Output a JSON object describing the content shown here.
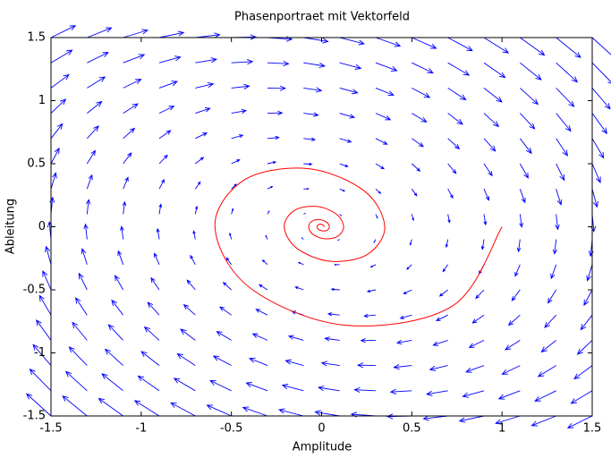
{
  "chart_data": {
    "type": "quiver",
    "title": "Phasenportraet mit Vektorfeld",
    "xlabel": "Amplitude",
    "ylabel": "Ableitung",
    "xlim": [
      -1.5,
      1.5
    ],
    "ylim": [
      -1.5,
      1.5
    ],
    "xticks": [
      -1.5,
      -1,
      -0.5,
      0,
      0.5,
      1,
      1.5
    ],
    "yticks": [
      -1.5,
      -1,
      -0.5,
      0,
      0.5,
      1,
      1.5
    ],
    "quiver": {
      "color": "#0000ff",
      "x": [
        -1.5,
        -1.3,
        -1.1,
        -0.9,
        -0.7,
        -0.5,
        -0.3,
        -0.1,
        0.1,
        0.3,
        0.5,
        0.7,
        0.9,
        1.1,
        1.3,
        1.5
      ],
      "y": [
        -1.5,
        -1.3,
        -1.1,
        -0.9,
        -0.7,
        -0.5,
        -0.3,
        -0.1,
        0.1,
        0.3,
        0.5,
        0.7,
        0.9,
        1.1,
        1.3,
        1.5
      ],
      "u": [
        [
          -1.5,
          -1.5,
          -1.5,
          -1.5,
          -1.5,
          -1.5,
          -1.5,
          -1.5,
          -1.5,
          -1.5,
          -1.5,
          -1.5,
          -1.5,
          -1.5,
          -1.5,
          -1.5
        ],
        [
          -1.3,
          -1.3,
          -1.3,
          -1.3,
          -1.3,
          -1.3,
          -1.3,
          -1.3,
          -1.3,
          -1.3,
          -1.3,
          -1.3,
          -1.3,
          -1.3,
          -1.3,
          -1.3
        ],
        [
          -1.1,
          -1.1,
          -1.1,
          -1.1,
          -1.1,
          -1.1,
          -1.1,
          -1.1,
          -1.1,
          -1.1,
          -1.1,
          -1.1,
          -1.1,
          -1.1,
          -1.1,
          -1.1
        ],
        [
          -0.9,
          -0.9,
          -0.9,
          -0.9,
          -0.9,
          -0.9,
          -0.9,
          -0.9,
          -0.9,
          -0.9,
          -0.9,
          -0.9,
          -0.9,
          -0.9,
          -0.9,
          -0.9
        ],
        [
          -0.7,
          -0.7,
          -0.7,
          -0.7,
          -0.7,
          -0.7,
          -0.7,
          -0.7,
          -0.7,
          -0.7,
          -0.7,
          -0.7,
          -0.7,
          -0.7,
          -0.7,
          -0.7
        ],
        [
          -0.5,
          -0.5,
          -0.5,
          -0.5,
          -0.5,
          -0.5,
          -0.5,
          -0.5,
          -0.5,
          -0.5,
          -0.5,
          -0.5,
          -0.5,
          -0.5,
          -0.5,
          -0.5
        ],
        [
          -0.3,
          -0.3,
          -0.3,
          -0.3,
          -0.3,
          -0.3,
          -0.3,
          -0.3,
          -0.3,
          -0.3,
          -0.3,
          -0.3,
          -0.3,
          -0.3,
          -0.3,
          -0.3
        ],
        [
          -0.1,
          -0.1,
          -0.1,
          -0.1,
          -0.1,
          -0.1,
          -0.1,
          -0.1,
          -0.1,
          -0.1,
          -0.1,
          -0.1,
          -0.1,
          -0.1,
          -0.1,
          -0.1
        ],
        [
          0.1,
          0.1,
          0.1,
          0.1,
          0.1,
          0.1,
          0.1,
          0.1,
          0.1,
          0.1,
          0.1,
          0.1,
          0.1,
          0.1,
          0.1,
          0.1
        ],
        [
          0.3,
          0.3,
          0.3,
          0.3,
          0.3,
          0.3,
          0.3,
          0.3,
          0.3,
          0.3,
          0.3,
          0.3,
          0.3,
          0.3,
          0.3,
          0.3
        ],
        [
          0.5,
          0.5,
          0.5,
          0.5,
          0.5,
          0.5,
          0.5,
          0.5,
          0.5,
          0.5,
          0.5,
          0.5,
          0.5,
          0.5,
          0.5,
          0.5
        ],
        [
          0.7,
          0.7,
          0.7,
          0.7,
          0.7,
          0.7,
          0.7,
          0.7,
          0.7,
          0.7,
          0.7,
          0.7,
          0.7,
          0.7,
          0.7,
          0.7
        ],
        [
          0.9,
          0.9,
          0.9,
          0.9,
          0.9,
          0.9,
          0.9,
          0.9,
          0.9,
          0.9,
          0.9,
          0.9,
          0.9,
          0.9,
          0.9,
          0.9
        ],
        [
          1.1,
          1.1,
          1.1,
          1.1,
          1.1,
          1.1,
          1.1,
          1.1,
          1.1,
          1.1,
          1.1,
          1.1,
          1.1,
          1.1,
          1.1,
          1.1
        ],
        [
          1.3,
          1.3,
          1.3,
          1.3,
          1.3,
          1.3,
          1.3,
          1.3,
          1.3,
          1.3,
          1.3,
          1.3,
          1.3,
          1.3,
          1.3,
          1.3
        ],
        [
          1.5,
          1.5,
          1.5,
          1.5,
          1.5,
          1.5,
          1.5,
          1.5,
          1.5,
          1.5,
          1.5,
          1.5,
          1.5,
          1.5,
          1.5,
          1.5
        ]
      ],
      "v": [
        [
          1.95,
          1.75,
          1.55,
          1.35,
          1.15,
          0.95,
          0.75,
          0.55,
          0.35,
          0.15,
          -0.05,
          -0.25,
          -0.45,
          -0.65,
          -0.85,
          -1.05
        ],
        [
          1.89,
          1.69,
          1.49,
          1.29,
          1.09,
          0.89,
          0.69,
          0.49,
          0.29,
          0.09,
          -0.11,
          -0.31,
          -0.51,
          -0.71,
          -0.91,
          -1.11
        ],
        [
          1.83,
          1.63,
          1.43,
          1.23,
          1.03,
          0.83,
          0.63,
          0.43,
          0.23,
          0.03,
          -0.17,
          -0.37,
          -0.57,
          -0.77,
          -0.97,
          -1.17
        ],
        [
          1.77,
          1.57,
          1.37,
          1.17,
          0.97,
          0.77,
          0.57,
          0.37,
          0.17,
          -0.03,
          -0.23,
          -0.43,
          -0.63,
          -0.83,
          -1.03,
          -1.23
        ],
        [
          1.71,
          1.51,
          1.31,
          1.11,
          0.91,
          0.71,
          0.51,
          0.31,
          0.11,
          -0.09,
          -0.29,
          -0.49,
          -0.69,
          -0.89,
          -1.09,
          -1.29
        ],
        [
          1.65,
          1.45,
          1.25,
          1.05,
          0.85,
          0.65,
          0.45,
          0.25,
          0.05,
          -0.15,
          -0.35,
          -0.55,
          -0.75,
          -0.95,
          -1.15,
          -1.35
        ],
        [
          1.59,
          1.39,
          1.19,
          0.99,
          0.79,
          0.59,
          0.39,
          0.19,
          -0.01,
          -0.21,
          -0.41,
          -0.61,
          -0.81,
          -1.01,
          -1.21,
          -1.41
        ],
        [
          1.53,
          1.33,
          1.13,
          0.93,
          0.73,
          0.53,
          0.33,
          0.13,
          -0.07,
          -0.27,
          -0.47,
          -0.67,
          -0.87,
          -1.07,
          -1.27,
          -1.47
        ],
        [
          1.47,
          1.27,
          1.07,
          0.87,
          0.67,
          0.47,
          0.27,
          0.07,
          -0.13,
          -0.33,
          -0.53,
          -0.73,
          -0.93,
          -1.13,
          -1.33,
          -1.53
        ],
        [
          1.41,
          1.21,
          1.01,
          0.81,
          0.61,
          0.41,
          0.21,
          0.01,
          -0.19,
          -0.39,
          -0.59,
          -0.79,
          -0.99,
          -1.19,
          -1.39,
          -1.59
        ],
        [
          1.35,
          1.15,
          0.95,
          0.75,
          0.55,
          0.35,
          0.15,
          -0.05,
          -0.25,
          -0.45,
          -0.65,
          -0.85,
          -1.05,
          -1.25,
          -1.45,
          -1.65
        ],
        [
          1.29,
          1.09,
          0.89,
          0.69,
          0.49,
          0.29,
          0.09,
          -0.11,
          -0.31,
          -0.51,
          -0.71,
          -0.91,
          -1.11,
          -1.31,
          -1.51,
          -1.71
        ],
        [
          1.23,
          1.03,
          0.83,
          0.63,
          0.43,
          0.23,
          0.03,
          -0.17,
          -0.37,
          -0.57,
          -0.77,
          -0.97,
          -1.17,
          -1.37,
          -1.57,
          -1.77
        ],
        [
          1.17,
          0.97,
          0.77,
          0.57,
          0.37,
          0.17,
          -0.03,
          -0.23,
          -0.43,
          -0.63,
          -0.83,
          -1.03,
          -1.23,
          -1.43,
          -1.63,
          -1.83
        ],
        [
          1.11,
          0.91,
          0.71,
          0.51,
          0.31,
          0.11,
          -0.09,
          -0.29,
          -0.49,
          -0.69,
          -0.89,
          -1.09,
          -1.29,
          -1.49,
          -1.69,
          -1.89
        ],
        [
          1.05,
          0.85,
          0.65,
          0.45,
          0.25,
          0.05,
          -0.15,
          -0.35,
          -0.55,
          -0.75,
          -0.95,
          -1.15,
          -1.35,
          -1.55,
          -1.75,
          -1.95
        ]
      ]
    },
    "trajectory": {
      "color": "#ff0000",
      "x": [
        1,
        0.724,
        0.129,
        -0.397,
        -0.591,
        -0.428,
        -0.076,
        0.235,
        0.35,
        0.253,
        0.045,
        -0.139,
        -0.207,
        -0.15,
        -0.027,
        0.082,
        0.122,
        0.088,
        0.016,
        -0.049,
        -0.072,
        -0.052,
        -0.009,
        0.029,
        0.043,
        0.031,
        0.006,
        -0.017,
        -0.025,
        -0.018,
        -0.003,
        0.01,
        0.015
      ],
      "y": [
        0,
        -0.629,
        -0.78,
        -0.484,
        0,
        0.372,
        0.461,
        0.286,
        0,
        -0.22,
        -0.273,
        -0.169,
        0,
        0.13,
        0.161,
        0.1,
        0,
        -0.077,
        -0.095,
        -0.059,
        0,
        0.045,
        0.056,
        0.035,
        0,
        -0.027,
        -0.033,
        -0.021,
        0,
        0.016,
        0.02,
        0.012,
        0
      ]
    }
  }
}
